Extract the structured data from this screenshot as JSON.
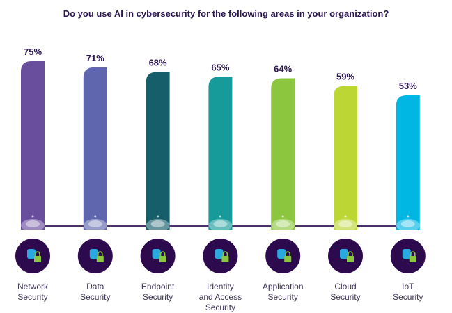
{
  "chart_data": {
    "type": "bar",
    "title": "Do you use AI in cybersecurity for the following areas in your organization?",
    "categories": [
      "Network Security",
      "Data Security",
      "Endpoint Security",
      "Identity and Access Security",
      "Application Security",
      "Cloud Security",
      "IoT Security"
    ],
    "category_lines": [
      [
        "Network",
        "Security"
      ],
      [
        "Data",
        "Security"
      ],
      [
        "Endpoint",
        "Security"
      ],
      [
        "Identity",
        "and Access",
        "Security"
      ],
      [
        "Application",
        "Security"
      ],
      [
        "Cloud",
        "Security"
      ],
      [
        "IoT",
        "Security"
      ]
    ],
    "values": [
      75,
      71,
      68,
      65,
      64,
      59,
      53
    ],
    "value_labels": [
      "75%",
      "71%",
      "68%",
      "65%",
      "64%",
      "59%",
      "53%"
    ],
    "colors": [
      "#6a4e9e",
      "#5f66ae",
      "#165e6a",
      "#169b9a",
      "#8cc63f",
      "#bcd634",
      "#00b6e3"
    ],
    "icons": [
      "network-lock-icon",
      "database-lock-icon",
      "endpoint-network-icon",
      "user-identity-icon",
      "application-lock-icon",
      "cloud-lock-icon",
      "iot-hub-icon"
    ],
    "ylabel": "",
    "xlabel": "",
    "grid": false
  }
}
